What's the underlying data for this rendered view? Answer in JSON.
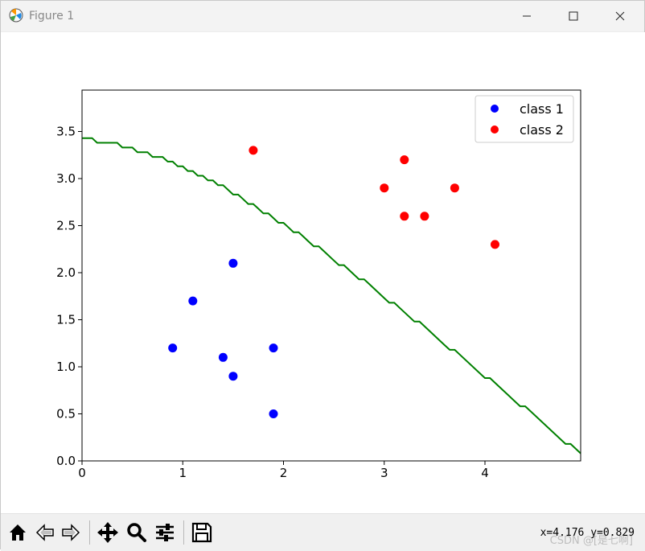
{
  "window": {
    "title": "Figure 1"
  },
  "toolbar": {
    "coords": "x=4.176  y=0.829",
    "watermark": "CSDN @[是七啊]",
    "buttons": [
      "home-icon",
      "back-icon",
      "forward-icon",
      "pan-icon",
      "zoom-icon",
      "configure-subplots-icon",
      "save-icon"
    ]
  },
  "chart_data": {
    "type": "scatter",
    "xlim": [
      0,
      4.95
    ],
    "ylim": [
      0,
      3.94
    ],
    "x_ticks": [
      0,
      1,
      2,
      3,
      4
    ],
    "y_ticks": [
      "0.0",
      "0.5",
      "1.0",
      "1.5",
      "2.0",
      "2.5",
      "3.0",
      "3.5"
    ],
    "grid": false,
    "legend_position": "upper right",
    "series": [
      {
        "name": "class 1",
        "color": "#0000ff",
        "points": [
          [
            0.9,
            1.2
          ],
          [
            1.1,
            1.7
          ],
          [
            1.5,
            2.1
          ],
          [
            1.4,
            1.1
          ],
          [
            1.5,
            0.9
          ],
          [
            1.9,
            1.2
          ],
          [
            1.9,
            0.5
          ]
        ]
      },
      {
        "name": "class 2",
        "color": "#ff0000",
        "points": [
          [
            1.7,
            3.3
          ],
          [
            3.0,
            2.9
          ],
          [
            3.2,
            3.2
          ],
          [
            3.2,
            2.6
          ],
          [
            3.4,
            2.6
          ],
          [
            3.7,
            2.9
          ],
          [
            4.1,
            2.3
          ]
        ]
      }
    ],
    "boundary": {
      "color": "#008000",
      "points": [
        [
          0,
          3.43
        ],
        [
          0.1,
          3.43
        ],
        [
          0.15,
          3.38
        ],
        [
          0.35,
          3.38
        ],
        [
          0.4,
          3.33
        ],
        [
          0.5,
          3.33
        ],
        [
          0.55,
          3.28
        ],
        [
          0.65,
          3.28
        ],
        [
          0.7,
          3.23
        ],
        [
          0.8,
          3.23
        ],
        [
          0.85,
          3.18
        ],
        [
          0.9,
          3.18
        ],
        [
          0.95,
          3.13
        ],
        [
          1.0,
          3.13
        ],
        [
          1.05,
          3.08
        ],
        [
          1.1,
          3.08
        ],
        [
          1.15,
          3.03
        ],
        [
          1.2,
          3.03
        ],
        [
          1.25,
          2.98
        ],
        [
          1.3,
          2.98
        ],
        [
          1.35,
          2.93
        ],
        [
          1.4,
          2.93
        ],
        [
          1.45,
          2.88
        ],
        [
          1.5,
          2.83
        ],
        [
          1.55,
          2.83
        ],
        [
          1.6,
          2.78
        ],
        [
          1.65,
          2.73
        ],
        [
          1.7,
          2.73
        ],
        [
          1.75,
          2.68
        ],
        [
          1.8,
          2.63
        ],
        [
          1.85,
          2.63
        ],
        [
          1.9,
          2.58
        ],
        [
          1.95,
          2.53
        ],
        [
          2.0,
          2.53
        ],
        [
          2.05,
          2.48
        ],
        [
          2.1,
          2.43
        ],
        [
          2.15,
          2.43
        ],
        [
          2.2,
          2.38
        ],
        [
          2.25,
          2.33
        ],
        [
          2.3,
          2.28
        ],
        [
          2.35,
          2.28
        ],
        [
          2.4,
          2.23
        ],
        [
          2.5,
          2.13
        ],
        [
          2.55,
          2.08
        ],
        [
          2.6,
          2.08
        ],
        [
          2.65,
          2.03
        ],
        [
          2.75,
          1.93
        ],
        [
          2.8,
          1.93
        ],
        [
          2.85,
          1.88
        ],
        [
          3.0,
          1.73
        ],
        [
          3.05,
          1.68
        ],
        [
          3.1,
          1.68
        ],
        [
          3.15,
          1.63
        ],
        [
          3.3,
          1.48
        ],
        [
          3.35,
          1.48
        ],
        [
          3.6,
          1.23
        ],
        [
          3.65,
          1.18
        ],
        [
          3.7,
          1.18
        ],
        [
          3.75,
          1.13
        ],
        [
          4.0,
          0.88
        ],
        [
          4.05,
          0.88
        ],
        [
          4.1,
          0.83
        ],
        [
          4.35,
          0.58
        ],
        [
          4.4,
          0.58
        ],
        [
          4.8,
          0.18
        ],
        [
          4.85,
          0.18
        ],
        [
          4.95,
          0.08
        ]
      ]
    }
  }
}
